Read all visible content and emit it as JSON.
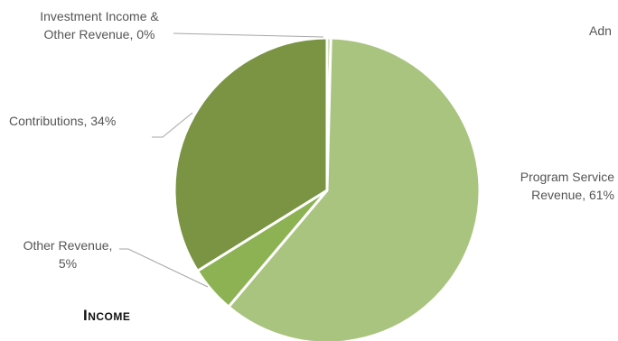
{
  "chart_data": {
    "type": "pie",
    "title": "Income",
    "slices": [
      {
        "label_line1": "Investment Income &",
        "label_line2": "Other Revenue, 0%",
        "value": 0.4,
        "color": "#A9C47F"
      },
      {
        "label_line1": "Program Service",
        "label_line2": "Revenue, 61%",
        "value": 61,
        "color": "#A9C47F"
      },
      {
        "label_line1": "Other Revenue,",
        "label_line2": "5%",
        "value": 5,
        "color": "#8DB254"
      },
      {
        "label_line1": "Contributions, 34%",
        "label_line2": "",
        "value": 34,
        "color": "#7A9443"
      }
    ],
    "cutoff_label": "Adn",
    "legend": "none"
  }
}
